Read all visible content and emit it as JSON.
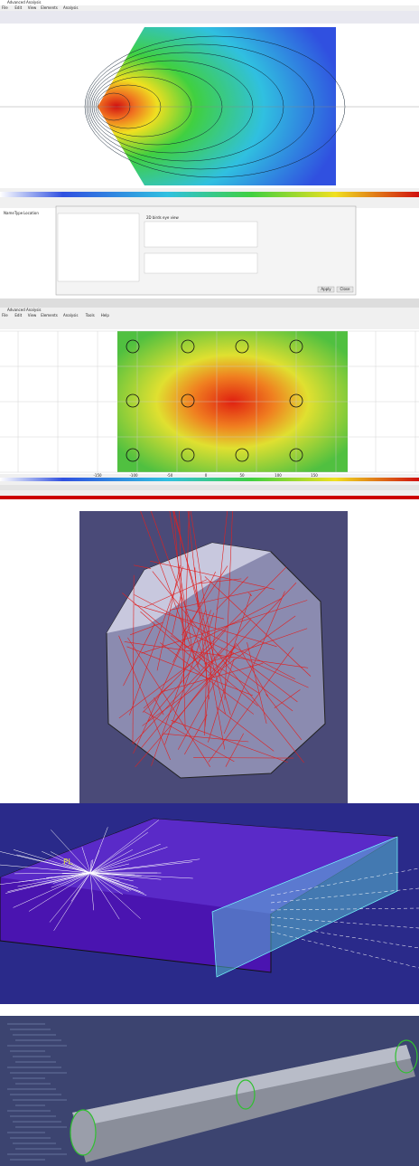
{
  "panel1": {
    "title": "Advanced Analysis",
    "menu": [
      "File",
      "Edit",
      "View",
      "Elements",
      "Analysis"
    ],
    "columns": [
      "Name",
      "Type",
      "Location"
    ],
    "dialog": {
      "option": "2D birds eye view",
      "apply": "Apply",
      "close": "Close"
    }
  },
  "panel2": {
    "title": "Advanced Analysis",
    "menu": [
      "File",
      "Edit",
      "View",
      "Elements",
      "Analysis",
      "Tools",
      "Help"
    ],
    "x_labels": [
      "-150",
      "-100",
      "-50",
      "0",
      "50",
      "100",
      "150"
    ]
  },
  "panel4": {
    "label": "PL"
  }
}
